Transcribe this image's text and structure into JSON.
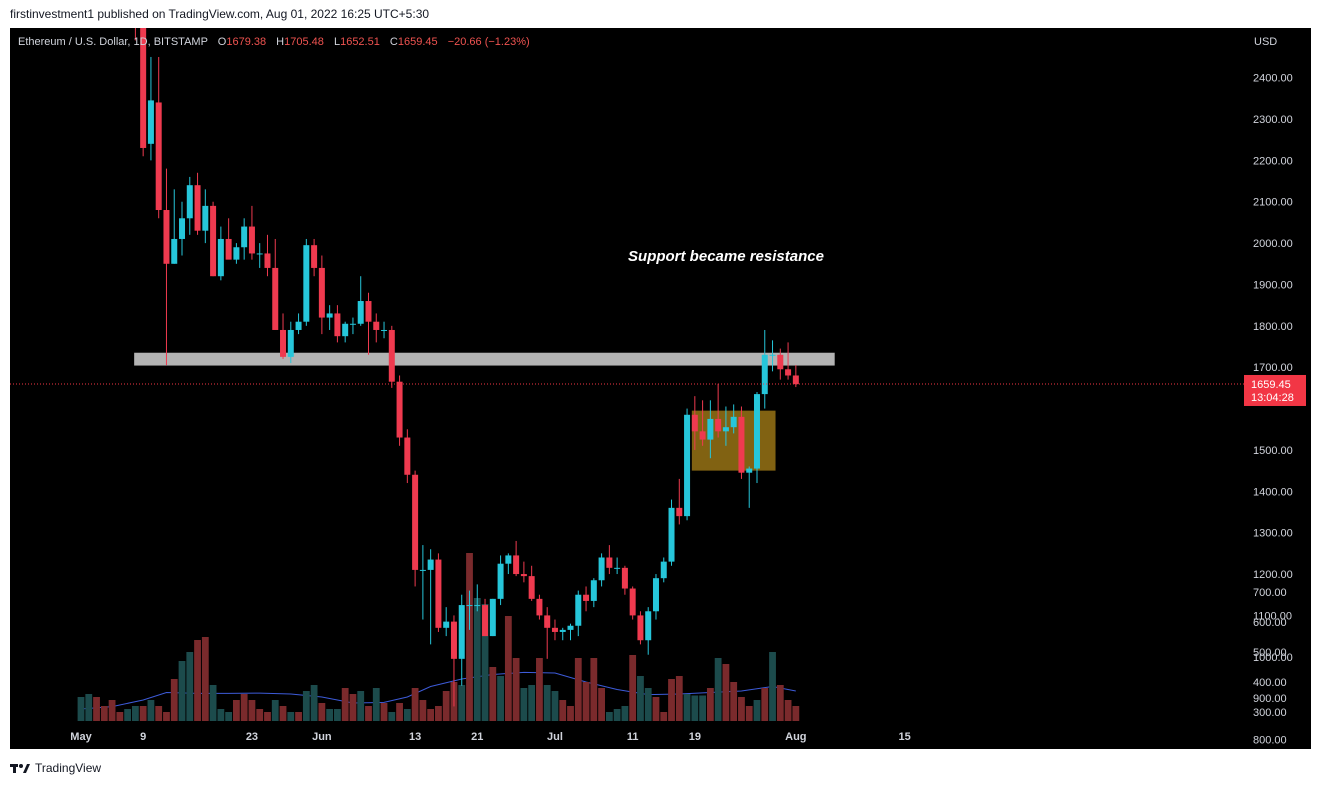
{
  "publish_line": "firstinvestment1 published on TradingView.com, Aug 01, 2022 16:25 UTC+5:30",
  "footer": {
    "brand": "TradingView"
  },
  "colors": {
    "up": "#26c6da",
    "down": "#ef3a4f",
    "vol_up": "#1c4b4c",
    "vol_down": "#7a2a2c",
    "vol_ma": "#3d5bd9",
    "zone_fill": "#9e7816",
    "resistance": "#b3b3b3",
    "price_label_bg": "#f23645",
    "legend_value": "#ef5350"
  },
  "legend": {
    "symbol": "Ethereum / U.S. Dollar, 1D, BITSTAMP",
    "o_label": "O",
    "o_value": "1679.38",
    "h_label": "H",
    "h_value": "1705.48",
    "l_label": "L",
    "l_value": "1652.51",
    "c_label": "C",
    "c_value": "1659.45",
    "change": "−20.66 (−1.23%)"
  },
  "axis": {
    "currency": "USD",
    "y_ticks": [
      "2400.00",
      "2300.00",
      "2200.00",
      "2100.00",
      "2000.00",
      "1900.00",
      "1800.00",
      "1700.00",
      "1500.00",
      "1400.00",
      "1300.00",
      "1200.00",
      "1100.00",
      "1000.00",
      "900.00",
      "800.00",
      "700.00",
      "600.00",
      "500.00",
      "400.00",
      "300.00"
    ],
    "x_ticks": [
      {
        "label": "May",
        "date": "2022-05-01"
      },
      {
        "label": "9",
        "date": "2022-05-09"
      },
      {
        "label": "23",
        "date": "2022-05-23"
      },
      {
        "label": "Jun",
        "date": "2022-06-01"
      },
      {
        "label": "13",
        "date": "2022-06-13"
      },
      {
        "label": "21",
        "date": "2022-06-21"
      },
      {
        "label": "Jul",
        "date": "2022-07-01"
      },
      {
        "label": "11",
        "date": "2022-07-11"
      },
      {
        "label": "19",
        "date": "2022-07-19"
      },
      {
        "label": "Aug",
        "date": "2022-08-01"
      },
      {
        "label": "15",
        "date": "2022-08-15"
      }
    ]
  },
  "annotation": {
    "text": "Support became resistance"
  },
  "price_tag": {
    "price": "1659.45",
    "countdown": "13:04:28"
  },
  "chart_data": {
    "type": "candlestick",
    "title": "Ethereum / U.S. Dollar, 1D, BITSTAMP",
    "y_range": [
      852,
      2520
    ],
    "resistance_zone": {
      "from": "2022-05-09",
      "to": "2022-08-06",
      "low": 1704,
      "high": 1735
    },
    "demand_zone": {
      "from": "2022-07-19",
      "to": "2022-07-29",
      "low": 1450,
      "high": 1595
    },
    "last_price": 1659.45,
    "candles": [
      {
        "d": "2022-05-08",
        "o": 2640,
        "h": 2680,
        "l": 2490,
        "c": 2520
      },
      {
        "d": "2022-05-09",
        "o": 2520,
        "h": 2550,
        "l": 2210,
        "c": 2230
      },
      {
        "d": "2022-05-10",
        "o": 2240,
        "h": 2450,
        "l": 2200,
        "c": 2345
      },
      {
        "d": "2022-05-11",
        "o": 2340,
        "h": 2450,
        "l": 2060,
        "c": 2080
      },
      {
        "d": "2022-05-12",
        "o": 2080,
        "h": 2180,
        "l": 1705,
        "c": 1950
      },
      {
        "d": "2022-05-13",
        "o": 1950,
        "h": 2130,
        "l": 1950,
        "c": 2010
      },
      {
        "d": "2022-05-14",
        "o": 2010,
        "h": 2100,
        "l": 1970,
        "c": 2060
      },
      {
        "d": "2022-05-15",
        "o": 2060,
        "h": 2160,
        "l": 2020,
        "c": 2140
      },
      {
        "d": "2022-05-16",
        "o": 2140,
        "h": 2170,
        "l": 2020,
        "c": 2030
      },
      {
        "d": "2022-05-17",
        "o": 2030,
        "h": 2130,
        "l": 2000,
        "c": 2090
      },
      {
        "d": "2022-05-18",
        "o": 2090,
        "h": 2100,
        "l": 1920,
        "c": 1920
      },
      {
        "d": "2022-05-19",
        "o": 1920,
        "h": 2040,
        "l": 1910,
        "c": 2010
      },
      {
        "d": "2022-05-20",
        "o": 2010,
        "h": 2060,
        "l": 1970,
        "c": 1960
      },
      {
        "d": "2022-05-21",
        "o": 1960,
        "h": 2000,
        "l": 1950,
        "c": 1990
      },
      {
        "d": "2022-05-22",
        "o": 1990,
        "h": 2060,
        "l": 1960,
        "c": 2040
      },
      {
        "d": "2022-05-23",
        "o": 2040,
        "h": 2090,
        "l": 1960,
        "c": 1975
      },
      {
        "d": "2022-05-24",
        "o": 1975,
        "h": 2000,
        "l": 1940,
        "c": 1975
      },
      {
        "d": "2022-05-25",
        "o": 1975,
        "h": 2020,
        "l": 1920,
        "c": 1940
      },
      {
        "d": "2022-05-26",
        "o": 1940,
        "h": 2010,
        "l": 1800,
        "c": 1790
      },
      {
        "d": "2022-05-27",
        "o": 1790,
        "h": 1830,
        "l": 1720,
        "c": 1725
      },
      {
        "d": "2022-05-28",
        "o": 1725,
        "h": 1810,
        "l": 1710,
        "c": 1790
      },
      {
        "d": "2022-05-29",
        "o": 1790,
        "h": 1830,
        "l": 1780,
        "c": 1810
      },
      {
        "d": "2022-05-30",
        "o": 1810,
        "h": 2010,
        "l": 1800,
        "c": 1995
      },
      {
        "d": "2022-05-31",
        "o": 1995,
        "h": 2010,
        "l": 1920,
        "c": 1940
      },
      {
        "d": "2022-06-01",
        "o": 1940,
        "h": 1970,
        "l": 1780,
        "c": 1820
      },
      {
        "d": "2022-06-02",
        "o": 1820,
        "h": 1850,
        "l": 1790,
        "c": 1830
      },
      {
        "d": "2022-06-03",
        "o": 1830,
        "h": 1850,
        "l": 1760,
        "c": 1775
      },
      {
        "d": "2022-06-04",
        "o": 1775,
        "h": 1810,
        "l": 1760,
        "c": 1805
      },
      {
        "d": "2022-06-05",
        "o": 1805,
        "h": 1820,
        "l": 1780,
        "c": 1805
      },
      {
        "d": "2022-06-06",
        "o": 1805,
        "h": 1920,
        "l": 1800,
        "c": 1860
      },
      {
        "d": "2022-06-07",
        "o": 1860,
        "h": 1880,
        "l": 1730,
        "c": 1810
      },
      {
        "d": "2022-06-08",
        "o": 1810,
        "h": 1830,
        "l": 1760,
        "c": 1790
      },
      {
        "d": "2022-06-09",
        "o": 1790,
        "h": 1810,
        "l": 1770,
        "c": 1790
      },
      {
        "d": "2022-06-10",
        "o": 1790,
        "h": 1800,
        "l": 1650,
        "c": 1665
      },
      {
        "d": "2022-06-11",
        "o": 1665,
        "h": 1680,
        "l": 1510,
        "c": 1530
      },
      {
        "d": "2022-06-12",
        "o": 1530,
        "h": 1550,
        "l": 1420,
        "c": 1440
      },
      {
        "d": "2022-06-13",
        "o": 1440,
        "h": 1450,
        "l": 1170,
        "c": 1210
      },
      {
        "d": "2022-06-14",
        "o": 1210,
        "h": 1270,
        "l": 1090,
        "c": 1210
      },
      {
        "d": "2022-06-15",
        "o": 1210,
        "h": 1260,
        "l": 1030,
        "c": 1235
      },
      {
        "d": "2022-06-16",
        "o": 1235,
        "h": 1250,
        "l": 1060,
        "c": 1070
      },
      {
        "d": "2022-06-17",
        "o": 1070,
        "h": 1120,
        "l": 1050,
        "c": 1085
      },
      {
        "d": "2022-06-18",
        "o": 1085,
        "h": 1100,
        "l": 880,
        "c": 995
      },
      {
        "d": "2022-06-19",
        "o": 995,
        "h": 1150,
        "l": 930,
        "c": 1125
      },
      {
        "d": "2022-06-20",
        "o": 1125,
        "h": 1160,
        "l": 1065,
        "c": 1125
      },
      {
        "d": "2022-06-21",
        "o": 1125,
        "h": 1175,
        "l": 1110,
        "c": 1125
      },
      {
        "d": "2022-06-22",
        "o": 1125,
        "h": 1140,
        "l": 1050,
        "c": 1050
      },
      {
        "d": "2022-06-23",
        "o": 1050,
        "h": 1140,
        "l": 1050,
        "c": 1140
      },
      {
        "d": "2022-06-24",
        "o": 1140,
        "h": 1245,
        "l": 1125,
        "c": 1225
      },
      {
        "d": "2022-06-25",
        "o": 1225,
        "h": 1250,
        "l": 1200,
        "c": 1245
      },
      {
        "d": "2022-06-26",
        "o": 1245,
        "h": 1280,
        "l": 1195,
        "c": 1200
      },
      {
        "d": "2022-06-27",
        "o": 1200,
        "h": 1230,
        "l": 1180,
        "c": 1195
      },
      {
        "d": "2022-06-28",
        "o": 1195,
        "h": 1220,
        "l": 1135,
        "c": 1140
      },
      {
        "d": "2022-06-29",
        "o": 1140,
        "h": 1150,
        "l": 1090,
        "c": 1100
      },
      {
        "d": "2022-06-30",
        "o": 1100,
        "h": 1120,
        "l": 995,
        "c": 1070
      },
      {
        "d": "2022-07-01",
        "o": 1070,
        "h": 1090,
        "l": 1040,
        "c": 1060
      },
      {
        "d": "2022-07-02",
        "o": 1060,
        "h": 1070,
        "l": 1040,
        "c": 1065
      },
      {
        "d": "2022-07-03",
        "o": 1065,
        "h": 1080,
        "l": 1040,
        "c": 1075
      },
      {
        "d": "2022-07-04",
        "o": 1075,
        "h": 1160,
        "l": 1050,
        "c": 1150
      },
      {
        "d": "2022-07-05",
        "o": 1150,
        "h": 1170,
        "l": 1110,
        "c": 1135
      },
      {
        "d": "2022-07-06",
        "o": 1135,
        "h": 1190,
        "l": 1120,
        "c": 1185
      },
      {
        "d": "2022-07-07",
        "o": 1185,
        "h": 1250,
        "l": 1170,
        "c": 1240
      },
      {
        "d": "2022-07-08",
        "o": 1240,
        "h": 1270,
        "l": 1200,
        "c": 1215
      },
      {
        "d": "2022-07-09",
        "o": 1215,
        "h": 1240,
        "l": 1200,
        "c": 1215
      },
      {
        "d": "2022-07-10",
        "o": 1215,
        "h": 1220,
        "l": 1150,
        "c": 1165
      },
      {
        "d": "2022-07-11",
        "o": 1165,
        "h": 1170,
        "l": 1090,
        "c": 1100
      },
      {
        "d": "2022-07-12",
        "o": 1100,
        "h": 1110,
        "l": 1030,
        "c": 1040
      },
      {
        "d": "2022-07-13",
        "o": 1040,
        "h": 1120,
        "l": 1005,
        "c": 1110
      },
      {
        "d": "2022-07-14",
        "o": 1110,
        "h": 1200,
        "l": 1090,
        "c": 1190
      },
      {
        "d": "2022-07-15",
        "o": 1190,
        "h": 1240,
        "l": 1180,
        "c": 1230
      },
      {
        "d": "2022-07-16",
        "o": 1230,
        "h": 1380,
        "l": 1220,
        "c": 1360
      },
      {
        "d": "2022-07-17",
        "o": 1360,
        "h": 1430,
        "l": 1320,
        "c": 1340
      },
      {
        "d": "2022-07-18",
        "o": 1340,
        "h": 1600,
        "l": 1330,
        "c": 1585
      },
      {
        "d": "2022-07-19",
        "o": 1585,
        "h": 1630,
        "l": 1500,
        "c": 1545
      },
      {
        "d": "2022-07-20",
        "o": 1545,
        "h": 1620,
        "l": 1510,
        "c": 1525
      },
      {
        "d": "2022-07-21",
        "o": 1525,
        "h": 1620,
        "l": 1480,
        "c": 1575
      },
      {
        "d": "2022-07-22",
        "o": 1575,
        "h": 1660,
        "l": 1530,
        "c": 1545
      },
      {
        "d": "2022-07-23",
        "o": 1545,
        "h": 1605,
        "l": 1510,
        "c": 1555
      },
      {
        "d": "2022-07-24",
        "o": 1555,
        "h": 1610,
        "l": 1540,
        "c": 1580
      },
      {
        "d": "2022-07-25",
        "o": 1580,
        "h": 1605,
        "l": 1430,
        "c": 1445
      },
      {
        "d": "2022-07-26",
        "o": 1445,
        "h": 1460,
        "l": 1360,
        "c": 1455
      },
      {
        "d": "2022-07-27",
        "o": 1455,
        "h": 1640,
        "l": 1420,
        "c": 1635
      },
      {
        "d": "2022-07-28",
        "o": 1635,
        "h": 1790,
        "l": 1600,
        "c": 1730
      },
      {
        "d": "2022-07-29",
        "o": 1730,
        "h": 1765,
        "l": 1690,
        "c": 1730
      },
      {
        "d": "2022-07-30",
        "o": 1730,
        "h": 1745,
        "l": 1670,
        "c": 1695
      },
      {
        "d": "2022-07-31",
        "o": 1695,
        "h": 1760,
        "l": 1670,
        "c": 1680
      },
      {
        "d": "2022-08-01",
        "o": 1680,
        "h": 1705,
        "l": 1652,
        "c": 1659
      }
    ],
    "volume_ma": [
      [
        "2022-05-01",
        310
      ],
      [
        "2022-05-05",
        318
      ],
      [
        "2022-05-09",
        340
      ],
      [
        "2022-05-12",
        365
      ],
      [
        "2022-05-16",
        362
      ],
      [
        "2022-05-20",
        362
      ],
      [
        "2022-05-24",
        363
      ],
      [
        "2022-05-28",
        360
      ],
      [
        "2022-06-01",
        350
      ],
      [
        "2022-06-05",
        330
      ],
      [
        "2022-06-09",
        332
      ],
      [
        "2022-06-12",
        350
      ],
      [
        "2022-06-15",
        385
      ],
      [
        "2022-06-19",
        410
      ],
      [
        "2022-06-23",
        425
      ],
      [
        "2022-06-27",
        432
      ],
      [
        "2022-07-01",
        430
      ],
      [
        "2022-07-05",
        400
      ],
      [
        "2022-07-09",
        375
      ],
      [
        "2022-07-13",
        358
      ],
      [
        "2022-07-17",
        360
      ],
      [
        "2022-07-21",
        365
      ],
      [
        "2022-07-25",
        370
      ],
      [
        "2022-07-29",
        385
      ],
      [
        "2022-08-01",
        370
      ]
    ],
    "volume": [
      [
        1,
        "2022-05-01",
        350
      ],
      [
        1,
        "2022-05-02",
        360
      ],
      [
        0,
        "2022-05-03",
        350
      ],
      [
        0,
        "2022-05-04",
        320
      ],
      [
        0,
        "2022-05-05",
        340
      ],
      [
        0,
        "2022-05-06",
        300
      ],
      [
        1,
        "2022-05-07",
        310
      ],
      [
        1,
        "2022-05-08",
        320
      ],
      [
        0,
        "2022-05-09",
        320
      ],
      [
        1,
        "2022-05-10",
        340
      ],
      [
        0,
        "2022-05-11",
        320
      ],
      [
        0,
        "2022-05-12",
        300
      ],
      [
        0,
        "2022-05-13",
        410
      ],
      [
        1,
        "2022-05-14",
        470
      ],
      [
        1,
        "2022-05-15",
        500
      ],
      [
        0,
        "2022-05-16",
        540
      ],
      [
        0,
        "2022-05-17",
        550
      ],
      [
        1,
        "2022-05-18",
        390
      ],
      [
        1,
        "2022-05-19",
        310
      ],
      [
        1,
        "2022-05-20",
        300
      ],
      [
        0,
        "2022-05-21",
        340
      ],
      [
        0,
        "2022-05-22",
        360
      ],
      [
        0,
        "2022-05-23",
        340
      ],
      [
        0,
        "2022-05-24",
        310
      ],
      [
        0,
        "2022-05-25",
        300
      ],
      [
        1,
        "2022-05-26",
        340
      ],
      [
        0,
        "2022-05-27",
        320
      ],
      [
        1,
        "2022-05-28",
        300
      ],
      [
        0,
        "2022-05-29",
        300
      ],
      [
        1,
        "2022-05-30",
        370
      ],
      [
        1,
        "2022-05-31",
        390
      ],
      [
        0,
        "2022-06-01",
        330
      ],
      [
        1,
        "2022-06-02",
        310
      ],
      [
        1,
        "2022-06-03",
        310
      ],
      [
        0,
        "2022-06-04",
        380
      ],
      [
        0,
        "2022-06-05",
        360
      ],
      [
        1,
        "2022-06-06",
        370
      ],
      [
        0,
        "2022-06-07",
        320
      ],
      [
        1,
        "2022-06-08",
        380
      ],
      [
        0,
        "2022-06-09",
        330
      ],
      [
        1,
        "2022-06-10",
        300
      ],
      [
        0,
        "2022-06-11",
        330
      ],
      [
        1,
        "2022-06-12",
        310
      ],
      [
        0,
        "2022-06-13",
        380
      ],
      [
        0,
        "2022-06-14",
        340
      ],
      [
        0,
        "2022-06-15",
        310
      ],
      [
        0,
        "2022-06-16",
        320
      ],
      [
        0,
        "2022-06-17",
        370
      ],
      [
        0,
        "2022-06-18",
        400
      ],
      [
        1,
        "2022-06-19",
        390
      ],
      [
        0,
        "2022-06-20",
        830
      ],
      [
        1,
        "2022-06-21",
        680
      ],
      [
        1,
        "2022-06-22",
        660
      ],
      [
        0,
        "2022-06-23",
        450
      ],
      [
        1,
        "2022-06-24",
        420
      ],
      [
        0,
        "2022-06-25",
        620
      ],
      [
        0,
        "2022-06-26",
        480
      ],
      [
        1,
        "2022-06-27",
        380
      ],
      [
        1,
        "2022-06-28",
        390
      ],
      [
        0,
        "2022-06-29",
        480
      ],
      [
        1,
        "2022-06-30",
        390
      ],
      [
        1,
        "2022-07-01",
        370
      ],
      [
        0,
        "2022-07-02",
        340
      ],
      [
        0,
        "2022-07-03",
        320
      ],
      [
        0,
        "2022-07-04",
        480
      ],
      [
        0,
        "2022-07-05",
        400
      ],
      [
        0,
        "2022-07-06",
        480
      ],
      [
        0,
        "2022-07-07",
        380
      ],
      [
        1,
        "2022-07-08",
        300
      ],
      [
        1,
        "2022-07-09",
        310
      ],
      [
        1,
        "2022-07-10",
        320
      ],
      [
        0,
        "2022-07-11",
        490
      ],
      [
        1,
        "2022-07-12",
        420
      ],
      [
        1,
        "2022-07-13",
        380
      ],
      [
        0,
        "2022-07-14",
        350
      ],
      [
        0,
        "2022-07-15",
        300
      ],
      [
        0,
        "2022-07-16",
        410
      ],
      [
        0,
        "2022-07-17",
        420
      ],
      [
        1,
        "2022-07-18",
        360
      ],
      [
        1,
        "2022-07-19",
        355
      ],
      [
        1,
        "2022-07-20",
        355
      ],
      [
        0,
        "2022-07-21",
        380
      ],
      [
        1,
        "2022-07-22",
        480
      ],
      [
        0,
        "2022-07-23",
        460
      ],
      [
        0,
        "2022-07-24",
        400
      ],
      [
        0,
        "2022-07-25",
        350
      ],
      [
        0,
        "2022-07-26",
        320
      ],
      [
        1,
        "2022-07-27",
        340
      ],
      [
        0,
        "2022-07-28",
        380
      ],
      [
        1,
        "2022-07-29",
        500
      ],
      [
        0,
        "2022-07-30",
        390
      ],
      [
        0,
        "2022-07-31",
        340
      ],
      [
        0,
        "2022-08-01",
        320
      ]
    ]
  }
}
